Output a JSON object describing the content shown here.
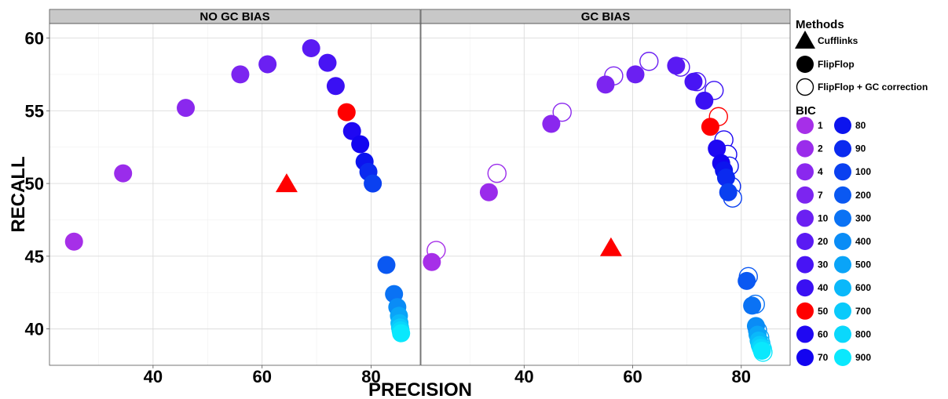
{
  "chart_data": {
    "type": "scatter",
    "xlabel": "PRECISION",
    "ylabel": "RECALL",
    "ylim": [
      37.5,
      61
    ],
    "yticks": [
      40,
      45,
      50,
      55,
      60
    ],
    "xticks": [
      40,
      60,
      80
    ],
    "grid": true,
    "legend_position": "right",
    "panels": [
      {
        "title": "NO GC BIAS",
        "xlim": [
          21,
          89
        ],
        "cufflinks": {
          "x": 64.5,
          "y": 50.0
        },
        "flipflop": [
          {
            "bic": "1",
            "x": 25.5,
            "y": 46.0
          },
          {
            "bic": "2",
            "x": 34.5,
            "y": 50.7
          },
          {
            "bic": "4",
            "x": 46.0,
            "y": 55.2
          },
          {
            "bic": "7",
            "x": 56.0,
            "y": 57.5
          },
          {
            "bic": "10",
            "x": 61.0,
            "y": 58.2
          },
          {
            "bic": "20",
            "x": 69.0,
            "y": 59.3
          },
          {
            "bic": "30",
            "x": 72.0,
            "y": 58.3
          },
          {
            "bic": "40",
            "x": 73.5,
            "y": 56.7
          },
          {
            "bic": "50",
            "x": 75.5,
            "y": 54.9
          },
          {
            "bic": "60",
            "x": 76.5,
            "y": 53.6
          },
          {
            "bic": "70",
            "x": 78.0,
            "y": 52.7
          },
          {
            "bic": "80",
            "x": 78.8,
            "y": 51.5
          },
          {
            "bic": "90",
            "x": 79.5,
            "y": 50.8
          },
          {
            "bic": "100",
            "x": 80.3,
            "y": 50.0
          },
          {
            "bic": "200",
            "x": 82.8,
            "y": 44.4
          },
          {
            "bic": "300",
            "x": 84.2,
            "y": 42.4
          },
          {
            "bic": "400",
            "x": 84.8,
            "y": 41.5
          },
          {
            "bic": "500",
            "x": 85.1,
            "y": 40.9
          },
          {
            "bic": "600",
            "x": 85.2,
            "y": 40.4
          },
          {
            "bic": "700",
            "x": 85.3,
            "y": 40.1
          },
          {
            "bic": "800",
            "x": 85.4,
            "y": 39.9
          },
          {
            "bic": "900",
            "x": 85.5,
            "y": 39.7
          }
        ],
        "flipflop_gc": []
      },
      {
        "title": "GC BIAS",
        "xlim": [
          21,
          89
        ],
        "cufflinks": {
          "x": 56.0,
          "y": 45.6
        },
        "flipflop": [
          {
            "bic": "1",
            "x": 23.0,
            "y": 44.6
          },
          {
            "bic": "2",
            "x": 33.5,
            "y": 49.4
          },
          {
            "bic": "4",
            "x": 45.0,
            "y": 54.1
          },
          {
            "bic": "7",
            "x": 55.0,
            "y": 56.8
          },
          {
            "bic": "10",
            "x": 60.5,
            "y": 57.5
          },
          {
            "bic": "20",
            "x": 68.0,
            "y": 58.1
          },
          {
            "bic": "30",
            "x": 71.2,
            "y": 57.0
          },
          {
            "bic": "40",
            "x": 73.2,
            "y": 55.7
          },
          {
            "bic": "50",
            "x": 74.3,
            "y": 53.9
          },
          {
            "bic": "60",
            "x": 75.5,
            "y": 52.4
          },
          {
            "bic": "70",
            "x": 76.3,
            "y": 51.4
          },
          {
            "bic": "80",
            "x": 76.8,
            "y": 50.9
          },
          {
            "bic": "90",
            "x": 77.2,
            "y": 50.4
          },
          {
            "bic": "100",
            "x": 77.6,
            "y": 49.4
          },
          {
            "bic": "200",
            "x": 81.0,
            "y": 43.3
          },
          {
            "bic": "300",
            "x": 82.0,
            "y": 41.6
          },
          {
            "bic": "400",
            "x": 82.7,
            "y": 40.2
          },
          {
            "bic": "500",
            "x": 83.0,
            "y": 39.6
          },
          {
            "bic": "600",
            "x": 83.2,
            "y": 39.2
          },
          {
            "bic": "700",
            "x": 83.4,
            "y": 38.9
          },
          {
            "bic": "800",
            "x": 83.6,
            "y": 38.7
          },
          {
            "bic": "900",
            "x": 83.8,
            "y": 38.5
          }
        ],
        "flipflop_gc": [
          {
            "bic": "1",
            "x": 23.8,
            "y": 45.4
          },
          {
            "bic": "2",
            "x": 35.0,
            "y": 50.7
          },
          {
            "bic": "4",
            "x": 47.0,
            "y": 54.9
          },
          {
            "bic": "7",
            "x": 56.5,
            "y": 57.4
          },
          {
            "bic": "10",
            "x": 63.0,
            "y": 58.4
          },
          {
            "bic": "20",
            "x": 68.8,
            "y": 58.0
          },
          {
            "bic": "30",
            "x": 71.8,
            "y": 57.0
          },
          {
            "bic": "40",
            "x": 75.0,
            "y": 56.4
          },
          {
            "bic": "50",
            "x": 75.8,
            "y": 54.6
          },
          {
            "bic": "60",
            "x": 76.8,
            "y": 53.0
          },
          {
            "bic": "70",
            "x": 77.5,
            "y": 52.0
          },
          {
            "bic": "80",
            "x": 77.8,
            "y": 51.2
          },
          {
            "bic": "90",
            "x": 78.2,
            "y": 49.8
          },
          {
            "bic": "100",
            "x": 78.4,
            "y": 49.0
          },
          {
            "bic": "200",
            "x": 81.3,
            "y": 43.6
          },
          {
            "bic": "300",
            "x": 82.6,
            "y": 41.7
          },
          {
            "bic": "400",
            "x": 83.0,
            "y": 39.9
          },
          {
            "bic": "500",
            "x": 83.4,
            "y": 39.4
          },
          {
            "bic": "600",
            "x": 83.6,
            "y": 39.0
          },
          {
            "bic": "700",
            "x": 83.7,
            "y": 38.8
          },
          {
            "bic": "800",
            "x": 83.9,
            "y": 38.6
          },
          {
            "bic": "900",
            "x": 84.0,
            "y": 38.4
          }
        ]
      }
    ],
    "legend": {
      "methods_title": "Methods",
      "methods": [
        "Cufflinks",
        "FlipFlop",
        "FlipFlop + GC correction"
      ],
      "bic_title": "BIC",
      "bic_levels": [
        {
          "label": "1",
          "color": "#a62fe8"
        },
        {
          "label": "2",
          "color": "#9a2ceb"
        },
        {
          "label": "4",
          "color": "#8a28ee"
        },
        {
          "label": "7",
          "color": "#7c25f0"
        },
        {
          "label": "10",
          "color": "#6b20f2"
        },
        {
          "label": "20",
          "color": "#5a1af3"
        },
        {
          "label": "30",
          "color": "#4814f4"
        },
        {
          "label": "40",
          "color": "#3a10f3"
        },
        {
          "label": "50",
          "color": "#ff0000"
        },
        {
          "label": "60",
          "color": "#1f08f2"
        },
        {
          "label": "70",
          "color": "#1304f0"
        },
        {
          "label": "80",
          "color": "#0c14ee"
        },
        {
          "label": "90",
          "color": "#0b2aef"
        },
        {
          "label": "100",
          "color": "#0a40f0"
        },
        {
          "label": "200",
          "color": "#0a58f2"
        },
        {
          "label": "300",
          "color": "#0a72f4"
        },
        {
          "label": "400",
          "color": "#0a8cf6"
        },
        {
          "label": "500",
          "color": "#0aa4f8"
        },
        {
          "label": "600",
          "color": "#0ab8fa"
        },
        {
          "label": "700",
          "color": "#0acafb"
        },
        {
          "label": "800",
          "color": "#0ad8fc"
        },
        {
          "label": "900",
          "color": "#0ae8fd"
        }
      ]
    }
  }
}
